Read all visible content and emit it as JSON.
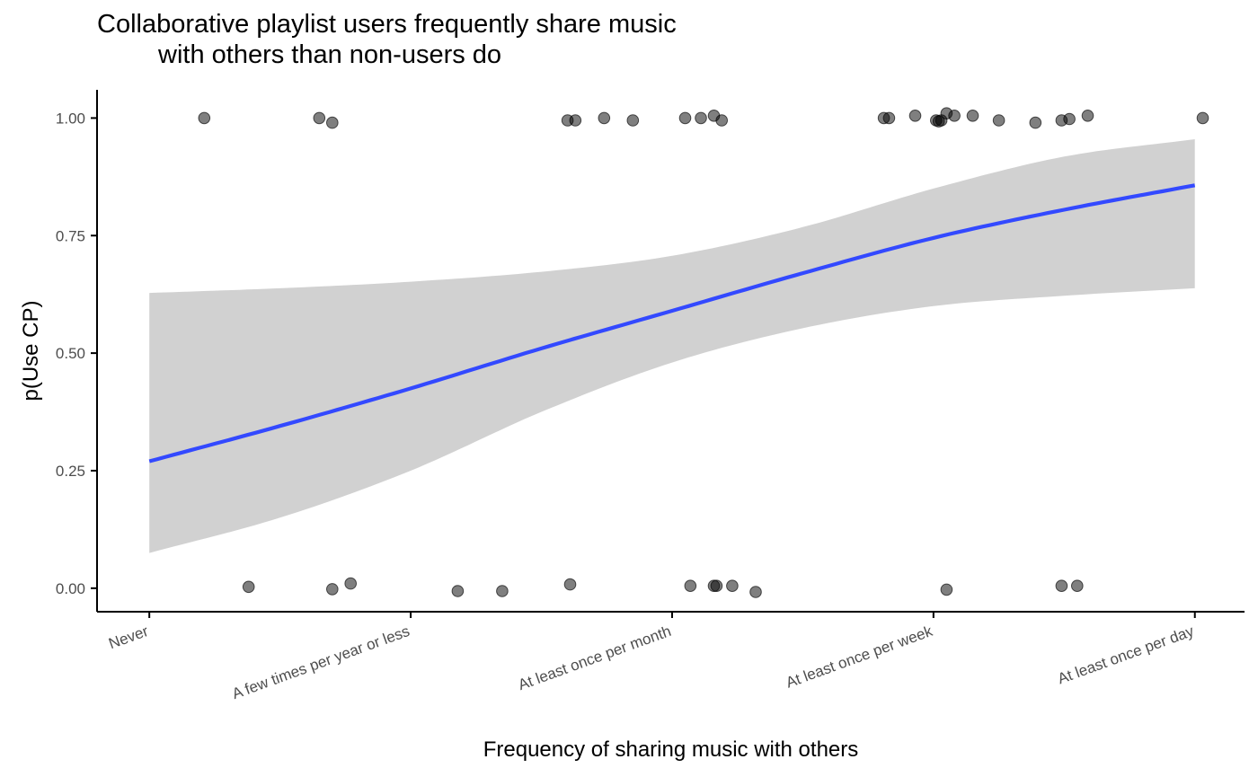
{
  "chart_data": {
    "type": "scatter",
    "title": [
      "Collaborative playlist users frequently share music",
      "with others than non-users do"
    ],
    "xlabel": "Frequency of sharing music with others",
    "ylabel": "p(Use CP)",
    "categories": [
      "Never",
      "A few times per year or less",
      "At least once per month",
      "At least once per week",
      "At least once per day"
    ],
    "xlim": [
      0.8,
      5.19
    ],
    "ylim": [
      -0.05,
      1.06
    ],
    "yticks": [
      0,
      0.25,
      0.5,
      0.75,
      1
    ],
    "ytick_labels": [
      "0.00",
      "0.25",
      "0.50",
      "0.75",
      "1.00"
    ],
    "grid": false,
    "legend": "none",
    "colors": {
      "points": "#000000",
      "points_opacity": 0.5,
      "fit_line": "#3349ff",
      "ribbon": "#d1d1d1",
      "axis": "#000000",
      "tick_text": "#4d4d4d"
    },
    "points": {
      "x": [
        1.21,
        1.65,
        1.7,
        2.6,
        2.63,
        2.74,
        2.85,
        3.05,
        3.11,
        3.16,
        3.19,
        3.81,
        3.83,
        3.93,
        4.01,
        4.02,
        4.03,
        4.05,
        4.08,
        4.15,
        4.25,
        4.39,
        4.49,
        4.52,
        4.59,
        5.03,
        1.38,
        1.7,
        1.77,
        2.18,
        2.35,
        2.61,
        3.07,
        3.16,
        3.17,
        3.23,
        3.32,
        4.05,
        4.49,
        4.55
      ],
      "y": [
        1.0,
        1.0,
        0.99,
        0.995,
        0.995,
        1.0,
        0.995,
        1.0,
        1.0,
        1.005,
        0.995,
        1.0,
        1.0,
        1.005,
        0.995,
        0.993,
        0.995,
        1.01,
        1.005,
        1.005,
        0.995,
        0.99,
        0.995,
        0.998,
        1.005,
        1.0,
        0.003,
        -0.002,
        0.01,
        -0.006,
        -0.006,
        0.008,
        0.005,
        0.005,
        0.005,
        0.005,
        -0.008,
        -0.003,
        0.005,
        0.005
      ]
    },
    "fit": {
      "x": [
        1.0,
        1.5,
        2.0,
        2.5,
        3.0,
        3.5,
        4.0,
        4.5,
        5.0
      ],
      "y": [
        0.27,
        0.345,
        0.425,
        0.51,
        0.59,
        0.67,
        0.745,
        0.805,
        0.857
      ],
      "ci_lower": [
        0.075,
        0.15,
        0.25,
        0.375,
        0.48,
        0.553,
        0.6,
        0.622,
        0.638
      ],
      "ci_upper": [
        0.628,
        0.638,
        0.652,
        0.673,
        0.707,
        0.768,
        0.85,
        0.918,
        0.955
      ]
    }
  }
}
